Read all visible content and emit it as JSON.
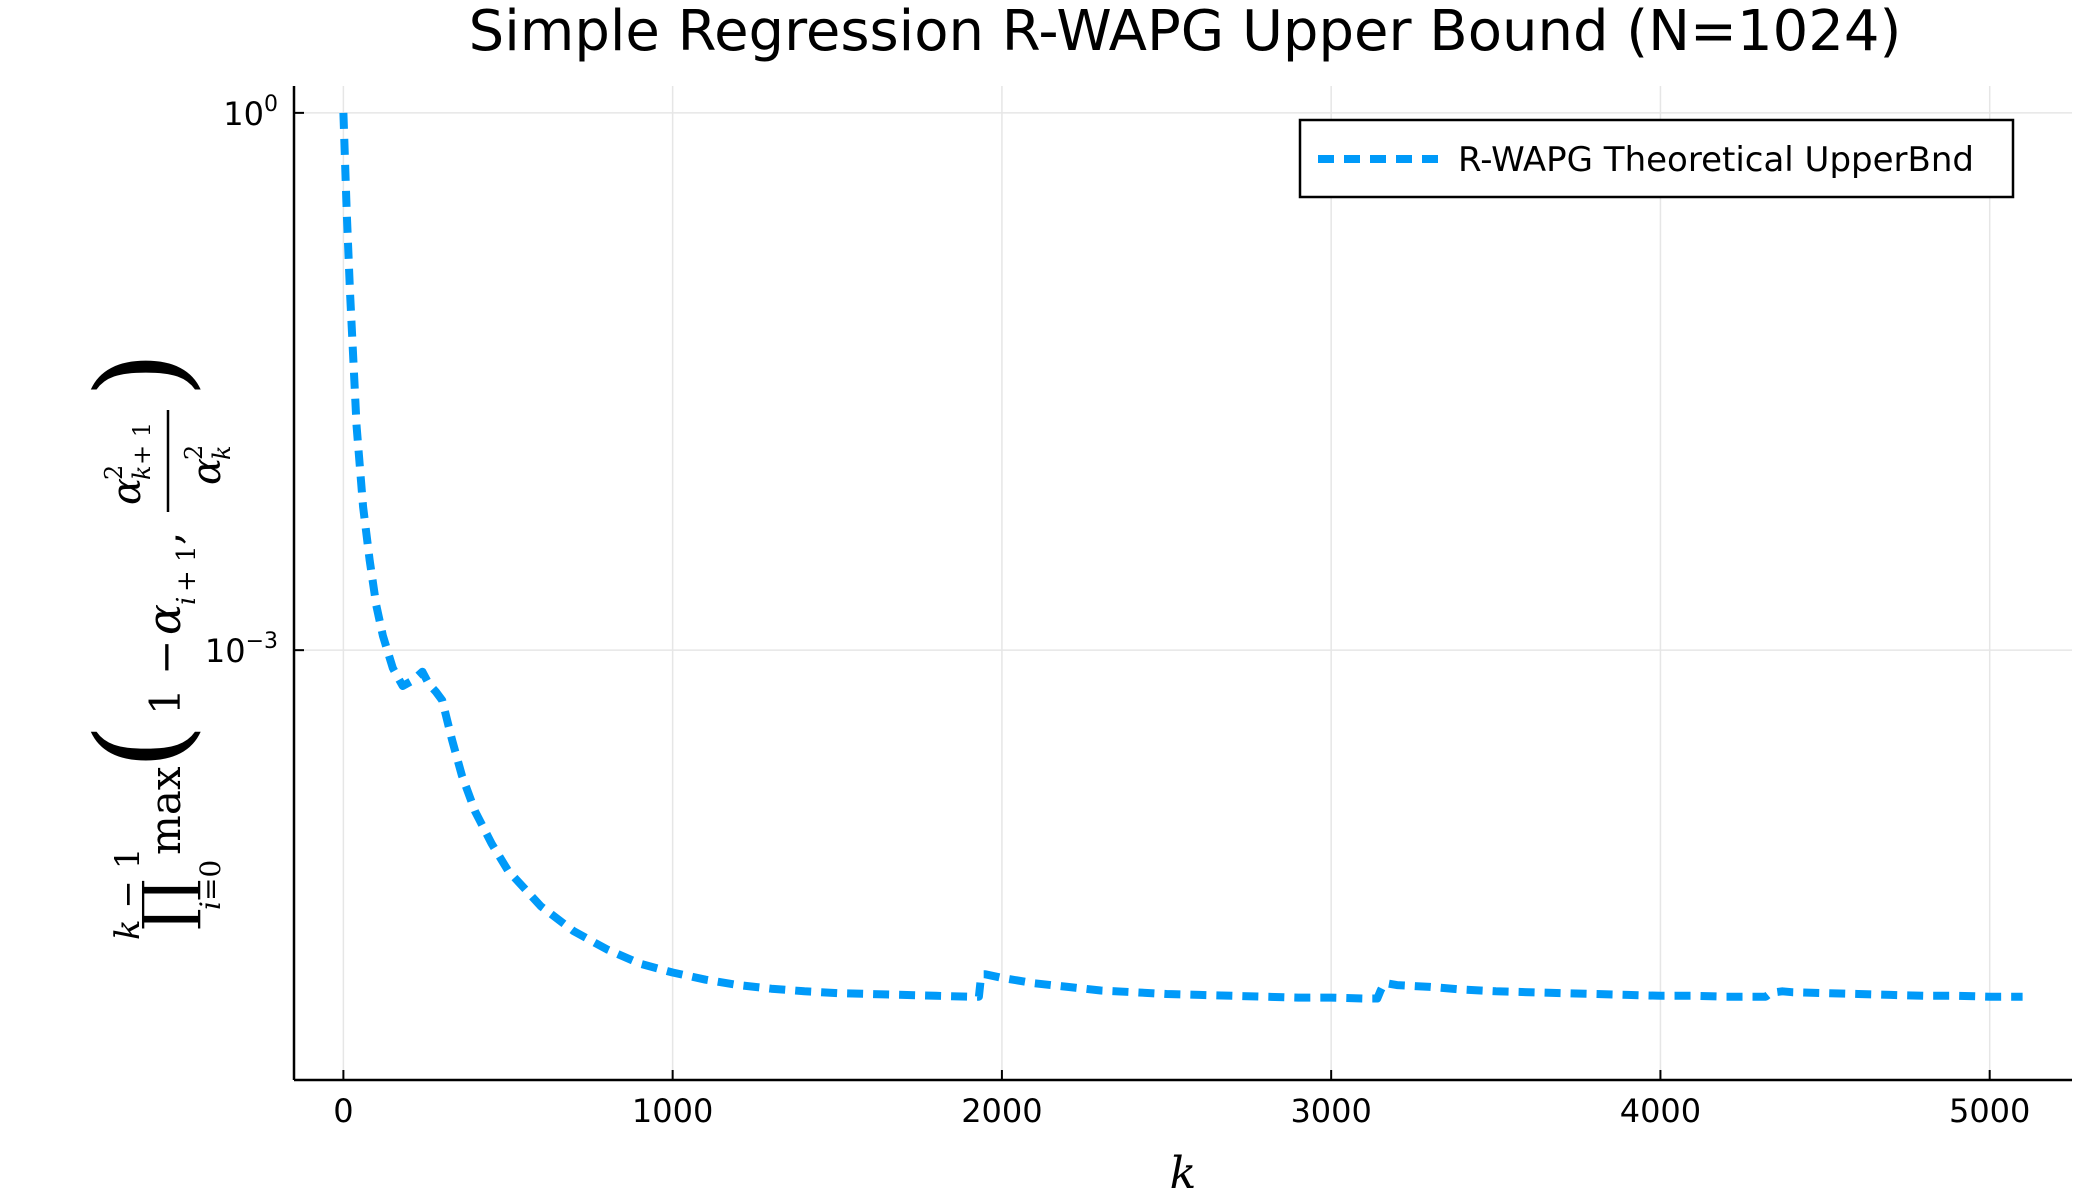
{
  "chart_data": {
    "type": "line",
    "title": "Simple Regression R-WAPG Upper Bound (N=1024)",
    "xlabel": "k",
    "ylabel": "∏_{i=0}^{k-1} max(1 − α_{i+1}, α²_{k+1}/α²_k)",
    "yscale": "log",
    "xlim": [
      -150,
      5250
    ],
    "ylim_log10": [
      -5.4,
      0.15
    ],
    "x_ticks": [
      {
        "value": 0,
        "label": "0"
      },
      {
        "value": 1000,
        "label": "1000"
      },
      {
        "value": 2000,
        "label": "2000"
      },
      {
        "value": 3000,
        "label": "3000"
      },
      {
        "value": 4000,
        "label": "4000"
      },
      {
        "value": 5000,
        "label": "5000"
      }
    ],
    "y_ticks": [
      {
        "value": 1,
        "base": "10",
        "exp": "0"
      },
      {
        "value": 0.001,
        "base": "10",
        "exp": "−3"
      }
    ],
    "grid": true,
    "legend_position": "top-right",
    "series": [
      {
        "name": "R-WAPG Theoretical UpperBnd",
        "color": "#009af9",
        "line_style": "dashed",
        "x": [
          0,
          10,
          20,
          40,
          60,
          80,
          100,
          120,
          150,
          180,
          210,
          240,
          260,
          280,
          300,
          330,
          360,
          400,
          450,
          500,
          600,
          700,
          800,
          900,
          1000,
          1100,
          1200,
          1300,
          1400,
          1500,
          1600,
          1700,
          1800,
          1900,
          1930,
          1935,
          1940,
          1950,
          2000,
          2100,
          2200,
          2300,
          2400,
          2500,
          2600,
          2700,
          2800,
          2900,
          3000,
          3100,
          3140,
          3150,
          3160,
          3170,
          3200,
          3300,
          3400,
          3500,
          3600,
          3700,
          3800,
          3900,
          4000,
          4100,
          4200,
          4300,
          4320,
          4330,
          4350,
          4370,
          4400,
          4500,
          4600,
          4700,
          4800,
          4900,
          5000,
          5100
        ],
        "y_log10": [
          0.0,
          -0.55,
          -1.0,
          -1.75,
          -2.2,
          -2.5,
          -2.75,
          -2.92,
          -3.1,
          -3.2,
          -3.17,
          -3.12,
          -3.19,
          -3.23,
          -3.28,
          -3.5,
          -3.7,
          -3.9,
          -4.08,
          -4.23,
          -4.43,
          -4.57,
          -4.67,
          -4.75,
          -4.8,
          -4.84,
          -4.87,
          -4.89,
          -4.905,
          -4.915,
          -4.92,
          -4.925,
          -4.93,
          -4.935,
          -4.935,
          -4.85,
          -4.81,
          -4.81,
          -4.83,
          -4.86,
          -4.88,
          -4.9,
          -4.91,
          -4.92,
          -4.925,
          -4.93,
          -4.935,
          -4.94,
          -4.94,
          -4.945,
          -4.945,
          -4.9,
          -4.865,
          -4.86,
          -4.87,
          -4.88,
          -4.895,
          -4.905,
          -4.91,
          -4.915,
          -4.92,
          -4.925,
          -4.93,
          -4.93,
          -4.935,
          -4.935,
          -4.935,
          -4.92,
          -4.91,
          -4.905,
          -4.91,
          -4.915,
          -4.92,
          -4.925,
          -4.93,
          -4.93,
          -4.935,
          -4.935
        ]
      }
    ]
  }
}
